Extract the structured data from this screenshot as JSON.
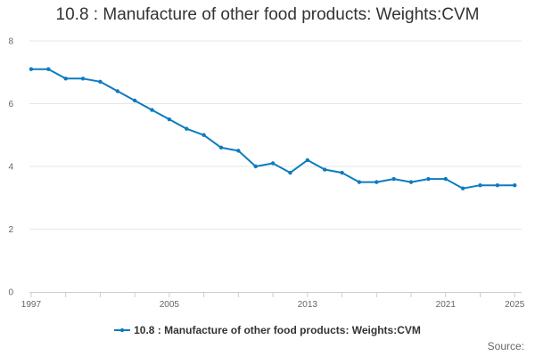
{
  "chart_data": {
    "type": "line",
    "title": "10.8 : Manufacture of other food products: Weights:CVM",
    "xlabel": "",
    "ylabel": "",
    "x": [
      1997,
      1998,
      1999,
      2000,
      2001,
      2002,
      2003,
      2004,
      2005,
      2006,
      2007,
      2008,
      2009,
      2010,
      2011,
      2012,
      2013,
      2014,
      2015,
      2016,
      2017,
      2018,
      2019,
      2020,
      2021,
      2022,
      2023,
      2024,
      2025
    ],
    "series": [
      {
        "name": "10.8 : Manufacture of other food products: Weights:CVM",
        "color": "#0d7bbf",
        "values": [
          7.1,
          7.1,
          6.8,
          6.8,
          6.7,
          6.4,
          6.1,
          5.8,
          5.5,
          5.2,
          5.0,
          4.6,
          4.5,
          4.0,
          4.1,
          3.8,
          4.2,
          3.9,
          3.8,
          3.5,
          3.5,
          3.6,
          3.5,
          3.6,
          3.6,
          3.3,
          3.4,
          3.4,
          3.4
        ]
      }
    ],
    "xlim": [
      1997,
      2025
    ],
    "ylim": [
      0,
      8
    ],
    "x_ticks": [
      1997,
      2005,
      2013,
      2021,
      2025
    ],
    "y_ticks": [
      0,
      2,
      4,
      6,
      8
    ],
    "grid": true,
    "legend_position": "bottom-center"
  },
  "source_label": "Source:",
  "colors": {
    "series": "#0d7bbf",
    "grid": "#e6e6e6",
    "axis": "#cccccc"
  }
}
